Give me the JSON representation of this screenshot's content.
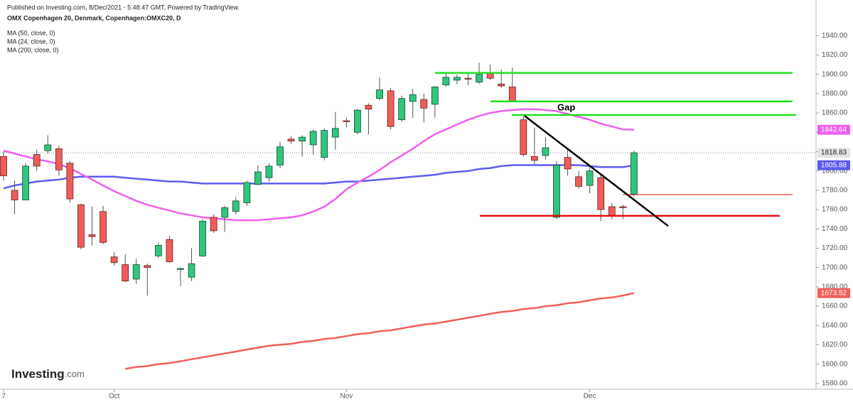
{
  "chart_data": {
    "type": "candlestick",
    "source": "Published on Investing.com, 8/Dec/2021 - 5:48:47 GMT, Powered by TradingView.",
    "title": "OMX Copenhagen 20, Denmark, Copenhagen:OMXC20, D",
    "logo": {
      "name": "Investing",
      "suffix": ".com"
    },
    "categories": [
      "7",
      null,
      null,
      null,
      null,
      null,
      null,
      null,
      null,
      null,
      "Oct",
      null,
      null,
      null,
      null,
      null,
      null,
      null,
      null,
      null,
      null,
      null,
      null,
      null,
      null,
      null,
      null,
      null,
      null,
      null,
      null,
      "Nov",
      null,
      null,
      null,
      null,
      null,
      null,
      null,
      null,
      null,
      null,
      null,
      null,
      null,
      null,
      null,
      null,
      null,
      null,
      null,
      null,
      null,
      "Dec",
      null,
      null,
      null,
      null
    ],
    "open": [
      1815,
      1780,
      1770,
      1817,
      1821,
      1823,
      1808,
      1765,
      1734,
      1758,
      1711,
      1703,
      1688,
      1702,
      1712,
      1729,
      1698,
      1690,
      1712,
      1752,
      1752,
      1758,
      1767,
      1786,
      1793,
      1806,
      1833,
      1831,
      1827,
      1814,
      1835,
      1852,
      1840,
      1868,
      1875,
      1883,
      1853,
      1872,
      1874,
      1869,
      1889,
      1894,
      1896,
      1892,
      1901,
      1890,
      1887,
      1853,
      1815,
      1816,
      1752,
      1814,
      1794,
      1785,
      1793,
      1763,
      1763,
      1776
    ],
    "high": [
      1820,
      1790,
      1808,
      1822,
      1837,
      1826,
      1810,
      1766,
      1763,
      1764,
      1716,
      1714,
      1709,
      1704,
      1726,
      1733,
      1700,
      1720,
      1750,
      1755,
      1764,
      1773,
      1790,
      1806,
      1808,
      1830,
      1836,
      1837,
      1843,
      1844,
      1861,
      1855,
      1864,
      1870,
      1897,
      1886,
      1878,
      1885,
      1880,
      1888,
      1902,
      1900,
      1902,
      1912,
      1910,
      1905,
      1907,
      1857,
      1845,
      1835,
      1810,
      1824,
      1800,
      1804,
      1796,
      1767,
      1765,
      1821
    ],
    "low": [
      1790,
      1755,
      1770,
      1800,
      1818,
      1795,
      1767,
      1719,
      1723,
      1724,
      1702,
      1685,
      1683,
      1671,
      1710,
      1705,
      1681,
      1686,
      1711,
      1736,
      1737,
      1755,
      1764,
      1785,
      1789,
      1803,
      1828,
      1815,
      1817,
      1811,
      1822,
      1845,
      1838,
      1838,
      1873,
      1843,
      1851,
      1855,
      1850,
      1855,
      1887,
      1890,
      1889,
      1890,
      1894,
      1886,
      1871,
      1815,
      1807,
      1812,
      1750,
      1795,
      1782,
      1777,
      1748,
      1750,
      1750,
      1774
    ],
    "close": [
      1795,
      1770,
      1805,
      1805,
      1827,
      1801,
      1771,
      1721,
      1732,
      1726,
      1705,
      1686,
      1703,
      1700,
      1723,
      1706,
      1699,
      1704,
      1748,
      1738,
      1762,
      1769,
      1788,
      1799,
      1805,
      1825,
      1831,
      1835,
      1841,
      1842,
      1844,
      1851,
      1863,
      1864,
      1884,
      1846,
      1875,
      1879,
      1865,
      1887,
      1897,
      1897,
      1895,
      1900,
      1896,
      1888,
      1872,
      1817,
      1811,
      1824,
      1806,
      1802,
      1784,
      1800,
      1760,
      1753,
      1762,
      1818.83
    ],
    "up_color": "#2fc67e",
    "down_color": "#ef5d5a",
    "series": [
      {
        "name": "MA (50, close, 0)",
        "color": "#5d5cf0",
        "values": [
          1782,
          1785,
          1787,
          1789,
          1790,
          1791,
          1793,
          1794,
          1794,
          1794,
          1794,
          1793,
          1792,
          1791,
          1790,
          1789,
          1789,
          1788,
          1787,
          1787,
          1787,
          1787,
          1787,
          1787,
          1787,
          1787,
          1787,
          1787,
          1787,
          1787,
          1788,
          1789,
          1789,
          1790,
          1791,
          1792,
          1793,
          1794,
          1795,
          1796,
          1798,
          1799,
          1800,
          1802,
          1803,
          1805,
          1806,
          1806,
          1806,
          1806,
          1806,
          1806,
          1806,
          1805,
          1804,
          1804,
          1804,
          1805.88
        ]
      },
      {
        "name": "MA (24, close, 0)",
        "color": "#ee5fee",
        "values": [
          1821,
          1818,
          1815,
          1812,
          1810,
          1807,
          1803,
          1797,
          1791,
          1785,
          1779,
          1774,
          1769,
          1765,
          1762,
          1759,
          1756,
          1754,
          1752,
          1751,
          1750,
          1749,
          1749,
          1749,
          1750,
          1751,
          1752,
          1754,
          1758,
          1763,
          1771,
          1781,
          1788,
          1794,
          1801,
          1809,
          1816,
          1823,
          1831,
          1838,
          1843,
          1848,
          1853,
          1857,
          1860,
          1862,
          1863,
          1864,
          1864,
          1863,
          1862,
          1859,
          1856,
          1853,
          1849,
          1846,
          1843,
          1842.64
        ]
      },
      {
        "name": "MA (200, close, 0)",
        "color": "#f0605a",
        "values": [
          null,
          null,
          null,
          null,
          null,
          null,
          null,
          null,
          null,
          null,
          null,
          1595,
          1597,
          1598,
          1600,
          1601,
          1603,
          1605,
          1607,
          1609,
          1611,
          1613,
          1615,
          1617,
          1619,
          1620,
          1621,
          1623,
          1624,
          1626,
          1627,
          1629,
          1631,
          1632,
          1634,
          1635,
          1637,
          1639,
          1641,
          1642,
          1644,
          1646,
          1648,
          1650,
          1652,
          1654,
          1655,
          1657,
          1658,
          1660,
          1661,
          1663,
          1664,
          1666,
          1668,
          1669,
          1671,
          1673.52
        ]
      }
    ],
    "ylim": [
      1574,
      1977
    ],
    "yticks": [
      {
        "value": 1580,
        "label": "1580.00"
      },
      {
        "value": 1600,
        "label": "1600.00"
      },
      {
        "value": 1620,
        "label": "1620.00"
      },
      {
        "value": 1640,
        "label": "1640.00"
      },
      {
        "value": 1660,
        "label": "1660.00"
      },
      {
        "value": 1680,
        "label": "1680.00"
      },
      {
        "value": 1700,
        "label": "1700.00"
      },
      {
        "value": 1720,
        "label": "1720.00"
      },
      {
        "value": 1740,
        "label": "1740.00"
      },
      {
        "value": 1760,
        "label": "1760.00"
      },
      {
        "value": 1780,
        "label": "1780.00"
      },
      {
        "value": 1800,
        "label": "1800.00"
      },
      {
        "value": 1820,
        "label": "1820.00"
      },
      {
        "value": 1840,
        "label": "1840.00"
      },
      {
        "value": 1860,
        "label": "1860.00"
      },
      {
        "value": 1880,
        "label": "1880.00"
      },
      {
        "value": 1900,
        "label": "1900.00"
      },
      {
        "value": 1920,
        "label": "1920.00"
      },
      {
        "value": 1940,
        "label": "1940.00"
      }
    ],
    "annotations": {
      "gap_label": "Gap",
      "levels": [
        {
          "value": 1901.5,
          "color": "#22e022"
        },
        {
          "value": 1872,
          "color": "#22e022"
        },
        {
          "value": 1858,
          "color": "#22e022"
        },
        {
          "value": 1753.5,
          "color": "#e01010"
        },
        {
          "value": 1775.5,
          "color": "#e01010"
        }
      ],
      "trendline": [
        1857,
        1743
      ]
    }
  }
}
